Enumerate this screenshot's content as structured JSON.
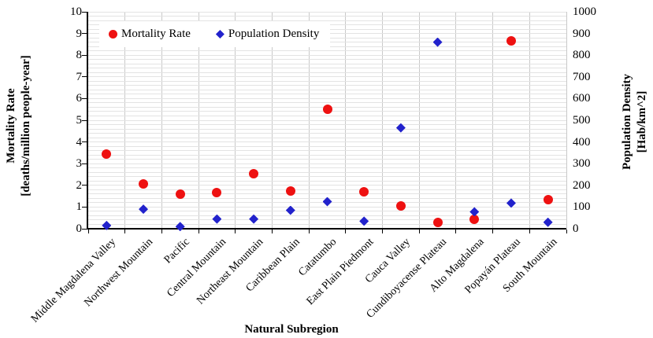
{
  "chart_data": {
    "type": "scatter",
    "categories": [
      "Middle Magdalena Valley",
      "Northwest Mountain",
      "Pacific",
      "Central Mountain",
      "Northeast Mountain",
      "Caribbean Plain",
      "Catatumbo",
      "East Plain Piedmont",
      "Cauca Valley",
      "Cundiboyacense Plateau",
      "Alto Magdalena",
      "Popayán Plateau",
      "South Mountain"
    ],
    "series": [
      {
        "name": "Mortality Rate",
        "axis": "left",
        "marker": "circle",
        "color": "#ee1111",
        "values": [
          3.45,
          2.05,
          1.6,
          1.65,
          2.55,
          1.75,
          5.5,
          1.7,
          1.05,
          0.3,
          0.45,
          8.65,
          1.35
        ]
      },
      {
        "name": "Population Density",
        "axis": "right",
        "marker": "diamond",
        "color": "#2222cc",
        "values": [
          15,
          90,
          10,
          45,
          45,
          85,
          125,
          35,
          465,
          860,
          78,
          118,
          30
        ]
      }
    ],
    "x_axis": {
      "title": "Natural Subregion"
    },
    "left_axis": {
      "title_line1": "Mortality Rate",
      "title_line2": "[deaths/million people-year]",
      "min": 0,
      "max": 10,
      "tick_labels": [
        "10",
        "9",
        "8",
        "7",
        "6",
        "5",
        "4",
        "3",
        "2",
        "1",
        "0"
      ]
    },
    "right_axis": {
      "title_line1": "Population Density",
      "title_line2": "[Hab/km^2]",
      "min": 0,
      "max": 1000,
      "tick_labels": [
        "1000",
        "900",
        "800",
        "700",
        "600",
        "500",
        "400",
        "300",
        "200",
        "100",
        "0"
      ]
    },
    "legend": {
      "position": "top-left",
      "items": [
        {
          "label": "Mortality Rate",
          "marker": "circle",
          "color": "#ee1111"
        },
        {
          "label": "Population Density",
          "marker": "diamond",
          "color": "#2222cc"
        }
      ]
    },
    "grid": {
      "horizontal_minor_step": 0.2,
      "vertical_per_category": true,
      "on": true
    }
  }
}
